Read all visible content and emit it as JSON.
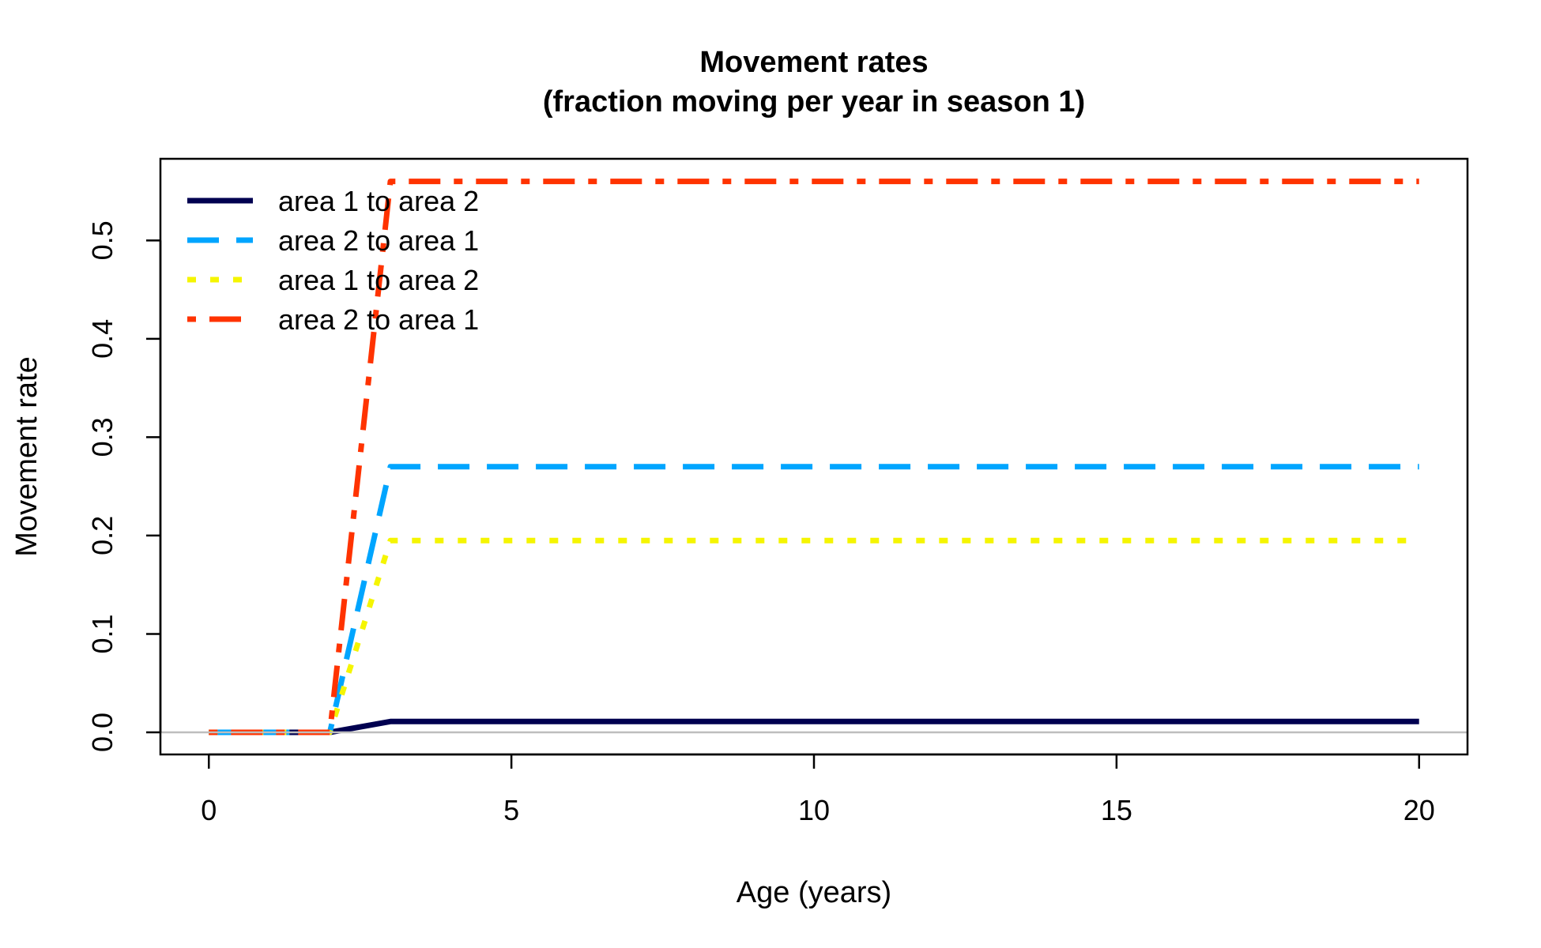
{
  "chart_data": {
    "type": "line",
    "title": "Movement rates",
    "subtitle": "(fraction moving per year in season 1)",
    "xlabel": "Age (years)",
    "ylabel": "Movement rate",
    "xlim": [
      -0.8,
      20.8
    ],
    "ylim": [
      -0.0225,
      0.583
    ],
    "xticks": [
      0,
      5,
      10,
      15,
      20
    ],
    "xtick_labels": [
      "0",
      "5",
      "10",
      "15",
      "20"
    ],
    "yticks": [
      0.0,
      0.1,
      0.2,
      0.3,
      0.4,
      0.5
    ],
    "ytick_labels": [
      "0.0",
      "0.1",
      "0.2",
      "0.3",
      "0.4",
      "0.5"
    ],
    "reference_line_y": 0,
    "reference_line_color": "#bebebe",
    "legend_position": "top-left",
    "grid": false,
    "x": [
      0,
      1,
      2,
      3,
      4,
      5,
      6,
      7,
      8,
      9,
      10,
      11,
      12,
      13,
      14,
      15,
      16,
      17,
      18,
      19,
      20
    ],
    "series": [
      {
        "name": "area 1 to area 2",
        "color": "#000050",
        "dash": "solid",
        "values": [
          0,
          0,
          0,
          0.011,
          0.011,
          0.011,
          0.011,
          0.011,
          0.011,
          0.011,
          0.011,
          0.011,
          0.011,
          0.011,
          0.011,
          0.011,
          0.011,
          0.011,
          0.011,
          0.011,
          0.011
        ]
      },
      {
        "name": "area 2 to area 1",
        "color": "#00a5ff",
        "dash": "dashed",
        "values": [
          0,
          0,
          0,
          0.27,
          0.27,
          0.27,
          0.27,
          0.27,
          0.27,
          0.27,
          0.27,
          0.27,
          0.27,
          0.27,
          0.27,
          0.27,
          0.27,
          0.27,
          0.27,
          0.27,
          0.27
        ]
      },
      {
        "name": "area 1 to area 2",
        "color": "#f5f500",
        "dash": "dotted",
        "values": [
          0,
          0,
          0,
          0.195,
          0.195,
          0.195,
          0.195,
          0.195,
          0.195,
          0.195,
          0.195,
          0.195,
          0.195,
          0.195,
          0.195,
          0.195,
          0.195,
          0.195,
          0.195,
          0.195,
          0.195
        ]
      },
      {
        "name": "area 2 to area 1",
        "color": "#ff3300",
        "dash": "dotdash",
        "values": [
          0,
          0,
          0,
          0.56,
          0.56,
          0.56,
          0.56,
          0.56,
          0.56,
          0.56,
          0.56,
          0.56,
          0.56,
          0.56,
          0.56,
          0.56,
          0.56,
          0.56,
          0.56,
          0.56,
          0.56
        ]
      }
    ]
  }
}
